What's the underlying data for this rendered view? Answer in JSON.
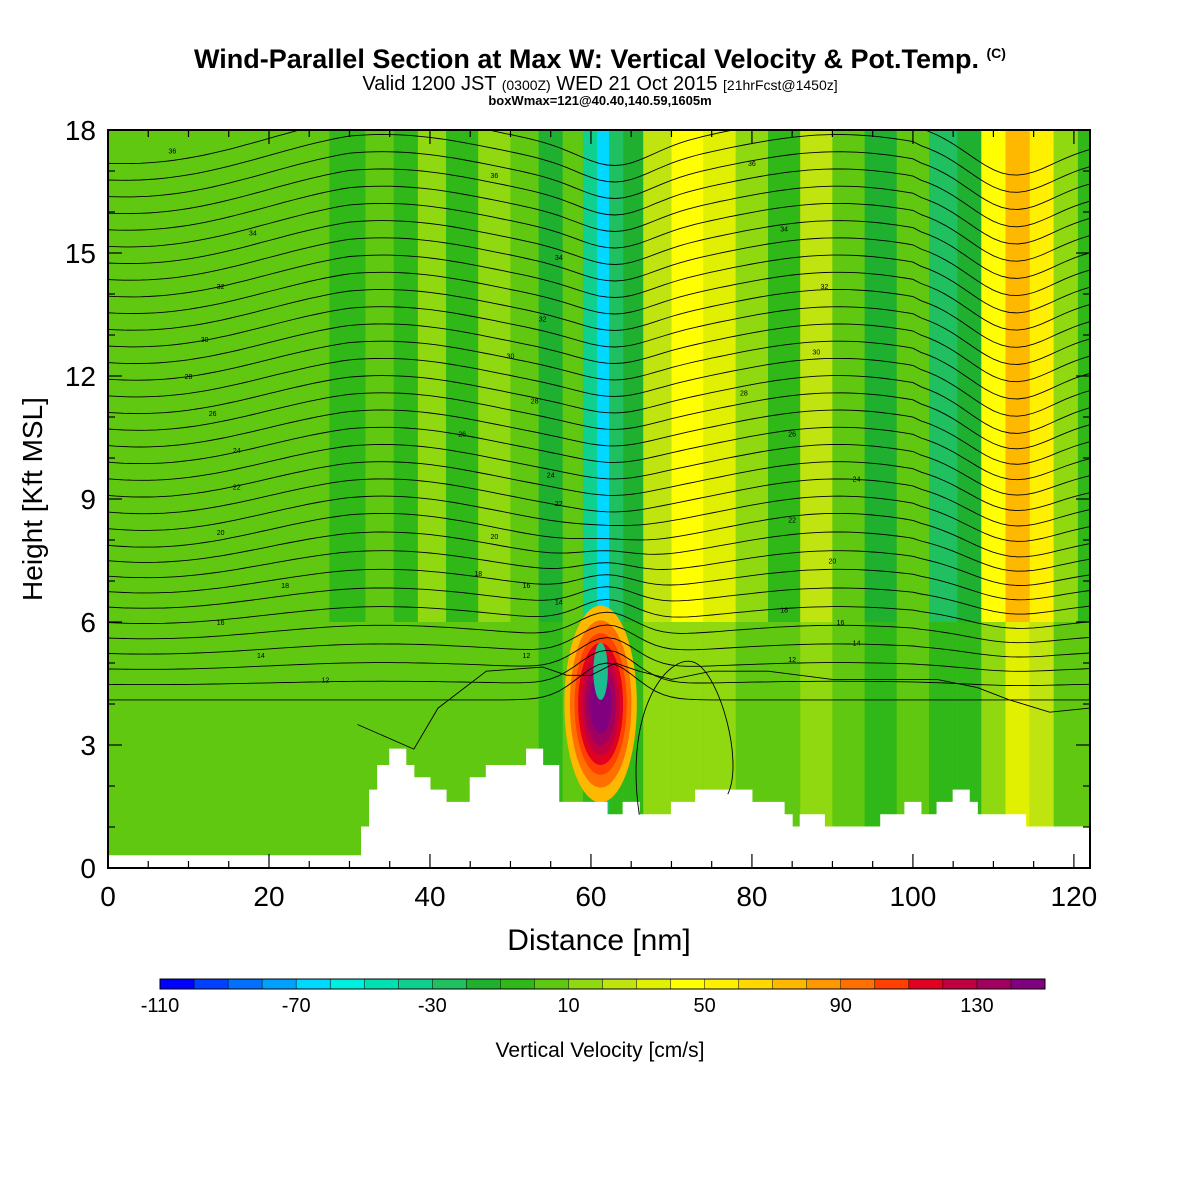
{
  "title": "Wind-Parallel Section at Max W: Vertical Velocity & Pot.Temp.",
  "title_mark": "(C)",
  "subtitle": {
    "valid": "Valid 1200 JST",
    "zulu": "(0300Z)",
    "date": "WED 21 Oct 2015",
    "forecast": "[21hrFcst@1450z]"
  },
  "subtitle2": "boxWmax=121@40.40,140.59,1605m",
  "chart_data": {
    "type": "heatmap",
    "xlabel": "Distance [nm]",
    "ylabel": "Height [Kft MSL]",
    "xlim": [
      0,
      122
    ],
    "ylim": [
      0,
      18
    ],
    "xticks": [
      "0",
      "20",
      "40",
      "60",
      "80",
      "100",
      "120"
    ],
    "yticks": [
      "0",
      "3",
      "6",
      "9",
      "12",
      "15",
      "18"
    ],
    "colorbar": {
      "label": "Vertical Velocity [cm/s]",
      "range": [
        -110,
        150
      ],
      "step": 10,
      "tick_labels": [
        "-110",
        "-70",
        "-30",
        "10",
        "50",
        "90",
        "130"
      ],
      "colors": [
        "#0000ff",
        "#0040ff",
        "#0070ff",
        "#00a0ff",
        "#00d8ff",
        "#00f0e0",
        "#00e0b0",
        "#10d090",
        "#20c060",
        "#20b030",
        "#30b818",
        "#60c810",
        "#90d810",
        "#c0e410",
        "#e0f000",
        "#ffff00",
        "#fff000",
        "#ffd800",
        "#ffb800",
        "#ff9800",
        "#ff7000",
        "#ff4000",
        "#e00020",
        "#c00040",
        "#a00060",
        "#800080"
      ]
    },
    "vertical_velocity_columns": [
      {
        "x": 0,
        "w": 0
      },
      {
        "x": 5,
        "w": 2
      },
      {
        "x": 10,
        "w": 5
      },
      {
        "x": 15,
        "w": 2
      },
      {
        "x": 20,
        "w": 6
      },
      {
        "x": 25,
        "w": 2
      },
      {
        "x": 30,
        "w": -4
      },
      {
        "x": 34,
        "w": 8
      },
      {
        "x": 37,
        "w": -6
      },
      {
        "x": 40,
        "w": 10
      },
      {
        "x": 44,
        "w": -5
      },
      {
        "x": 48,
        "w": 12
      },
      {
        "x": 52,
        "w": 2
      },
      {
        "x": 55,
        "w": -12
      },
      {
        "x": 58,
        "w": 6
      },
      {
        "x": 60,
        "w": -40
      },
      {
        "x": 61.5,
        "w": -70
      },
      {
        "x": 63,
        "w": -30
      },
      {
        "x": 65,
        "w": -15
      },
      {
        "x": 68,
        "w": 25
      },
      {
        "x": 72,
        "w": 45
      },
      {
        "x": 76,
        "w": 30
      },
      {
        "x": 80,
        "w": 15
      },
      {
        "x": 84,
        "w": -10
      },
      {
        "x": 88,
        "w": 20
      },
      {
        "x": 92,
        "w": 8
      },
      {
        "x": 96,
        "w": -20
      },
      {
        "x": 100,
        "w": 5
      },
      {
        "x": 104,
        "w": -30
      },
      {
        "x": 107,
        "w": -20
      },
      {
        "x": 110,
        "w": 40
      },
      {
        "x": 113,
        "w": 75
      },
      {
        "x": 116,
        "w": 55
      },
      {
        "x": 119,
        "w": 15
      },
      {
        "x": 122,
        "w": -10
      }
    ],
    "updraft_core": {
      "x": 61.2,
      "y": 4.0,
      "w_max": 121,
      "label": "boxWmax"
    },
    "terrain_kft": [
      [
        0,
        0.3
      ],
      [
        31,
        0.3
      ],
      [
        31.5,
        1.0
      ],
      [
        32.5,
        1.9
      ],
      [
        33.5,
        2.5
      ],
      [
        35,
        2.9
      ],
      [
        37,
        2.5
      ],
      [
        38,
        2.2
      ],
      [
        40,
        1.9
      ],
      [
        42,
        1.6
      ],
      [
        45,
        2.2
      ],
      [
        47,
        2.5
      ],
      [
        52,
        2.9
      ],
      [
        54,
        2.5
      ],
      [
        56,
        1.6
      ],
      [
        58,
        1.6
      ],
      [
        60,
        1.6
      ],
      [
        62,
        1.3
      ],
      [
        64,
        1.6
      ],
      [
        66,
        1.3
      ],
      [
        70,
        1.6
      ],
      [
        73,
        1.9
      ],
      [
        78,
        1.9
      ],
      [
        80,
        1.6
      ],
      [
        84,
        1.3
      ],
      [
        85,
        1.0
      ],
      [
        86,
        1.3
      ],
      [
        89,
        1.0
      ],
      [
        95,
        1.0
      ],
      [
        96,
        1.3
      ],
      [
        99,
        1.6
      ],
      [
        101,
        1.3
      ],
      [
        103,
        1.6
      ],
      [
        105,
        1.9
      ],
      [
        107,
        1.6
      ],
      [
        108,
        1.3
      ],
      [
        113,
        1.3
      ],
      [
        114,
        1.0
      ],
      [
        122,
        1.0
      ]
    ],
    "theta_labels": [
      {
        "label": "36",
        "x": 8,
        "y": 17.5
      },
      {
        "label": "34",
        "x": 18,
        "y": 15.5
      },
      {
        "label": "32",
        "x": 14,
        "y": 14.2
      },
      {
        "label": "30",
        "x": 12,
        "y": 12.9
      },
      {
        "label": "28",
        "x": 10,
        "y": 12.0
      },
      {
        "label": "26",
        "x": 13,
        "y": 11.1
      },
      {
        "label": "24",
        "x": 16,
        "y": 10.2
      },
      {
        "label": "22",
        "x": 16,
        "y": 9.3
      },
      {
        "label": "20",
        "x": 14,
        "y": 8.2
      },
      {
        "label": "18",
        "x": 22,
        "y": 6.9
      },
      {
        "label": "16",
        "x": 14,
        "y": 6.0
      },
      {
        "label": "14",
        "x": 19,
        "y": 5.2
      },
      {
        "label": "12",
        "x": 27,
        "y": 4.6
      },
      {
        "label": "36",
        "x": 48,
        "y": 16.9
      },
      {
        "label": "34",
        "x": 56,
        "y": 14.9
      },
      {
        "label": "32",
        "x": 54,
        "y": 13.4
      },
      {
        "label": "30",
        "x": 50,
        "y": 12.5
      },
      {
        "label": "28",
        "x": 53,
        "y": 11.4
      },
      {
        "label": "26",
        "x": 44,
        "y": 10.6
      },
      {
        "label": "24",
        "x": 55,
        "y": 9.6
      },
      {
        "label": "22",
        "x": 56,
        "y": 8.9
      },
      {
        "label": "20",
        "x": 48,
        "y": 8.1
      },
      {
        "label": "18",
        "x": 46,
        "y": 7.2
      },
      {
        "label": "16",
        "x": 52,
        "y": 6.9
      },
      {
        "label": "14",
        "x": 56,
        "y": 6.5
      },
      {
        "label": "12",
        "x": 52,
        "y": 5.2
      },
      {
        "label": "36",
        "x": 80,
        "y": 17.2
      },
      {
        "label": "34",
        "x": 84,
        "y": 15.6
      },
      {
        "label": "32",
        "x": 89,
        "y": 14.2
      },
      {
        "label": "30",
        "x": 88,
        "y": 12.6
      },
      {
        "label": "28",
        "x": 79,
        "y": 11.6
      },
      {
        "label": "26",
        "x": 85,
        "y": 10.6
      },
      {
        "label": "24",
        "x": 93,
        "y": 9.5
      },
      {
        "label": "22",
        "x": 85,
        "y": 8.5
      },
      {
        "label": "20",
        "x": 90,
        "y": 7.5
      },
      {
        "label": "18",
        "x": 84,
        "y": 6.3
      },
      {
        "label": "16",
        "x": 91,
        "y": 6.0
      },
      {
        "label": "14",
        "x": 93,
        "y": 5.5
      },
      {
        "label": "12",
        "x": 85,
        "y": 5.1
      }
    ]
  }
}
